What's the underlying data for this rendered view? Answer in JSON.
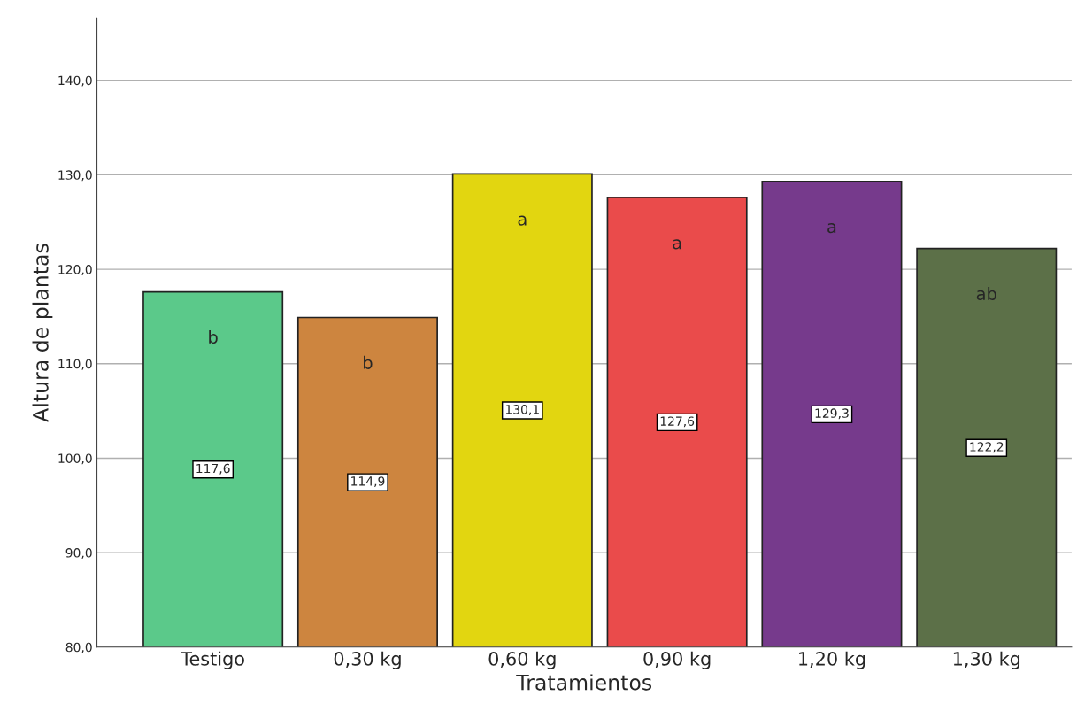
{
  "chart_data": {
    "type": "bar",
    "xlabel": "Tratamientos",
    "ylabel": "Altura de plantas",
    "categories": [
      "Testigo",
      "0,30 kg",
      "0,60 kg",
      "0,90 kg",
      "1,20 kg",
      "1,30 kg"
    ],
    "values": [
      117.6,
      114.9,
      130.1,
      127.6,
      129.3,
      122.2
    ],
    "colors": [
      "#5bc98a",
      "#cd853f",
      "#e2d610",
      "#ea4b4b",
      "#763a8c",
      "#5c7048"
    ],
    "value_labels": [
      "117,6",
      "114,9",
      "130,1",
      "127,6",
      "129,3",
      "122,2"
    ],
    "ylim": [
      80,
      146.6
    ],
    "yticks": [
      {
        "value": 80,
        "label": "80,0"
      },
      {
        "value": 90,
        "label": "90,0"
      },
      {
        "value": 100,
        "label": "100,0"
      },
      {
        "value": 110,
        "label": "110,0"
      },
      {
        "value": 120,
        "label": "120,0"
      },
      {
        "value": 130,
        "label": "130,0"
      },
      {
        "value": 140,
        "label": "140,0"
      }
    ],
    "grid": "y",
    "annotations": [
      "b",
      "b",
      "a",
      "a",
      "a",
      "ab"
    ]
  }
}
